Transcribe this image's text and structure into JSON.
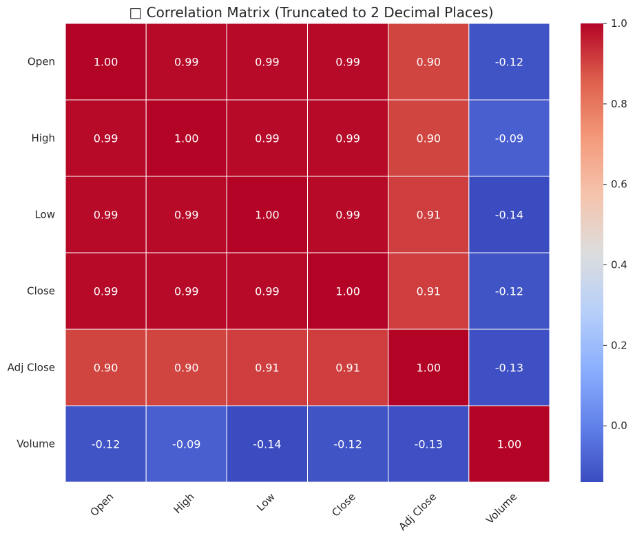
{
  "chart_data": {
    "type": "heatmap",
    "title": "□ Correlation Matrix (Truncated to 2 Decimal Places)",
    "rows": [
      "Open",
      "High",
      "Low",
      "Close",
      "Adj Close",
      "Volume"
    ],
    "columns": [
      "Open",
      "High",
      "Low",
      "Close",
      "Adj Close",
      "Volume"
    ],
    "values": [
      [
        1.0,
        0.99,
        0.99,
        0.99,
        0.9,
        -0.12
      ],
      [
        0.99,
        1.0,
        0.99,
        0.99,
        0.9,
        -0.09
      ],
      [
        0.99,
        0.99,
        1.0,
        0.99,
        0.91,
        -0.14
      ],
      [
        0.99,
        0.99,
        0.99,
        1.0,
        0.91,
        -0.12
      ],
      [
        0.9,
        0.9,
        0.91,
        0.91,
        1.0,
        -0.13
      ],
      [
        -0.12,
        -0.09,
        -0.14,
        -0.12,
        -0.13,
        1.0
      ]
    ],
    "cell_labels": [
      [
        "1.00",
        "0.99",
        "0.99",
        "0.99",
        "0.90",
        "-0.12"
      ],
      [
        "0.99",
        "1.00",
        "0.99",
        "0.99",
        "0.90",
        "-0.09"
      ],
      [
        "0.99",
        "0.99",
        "1.00",
        "0.99",
        "0.91",
        "-0.14"
      ],
      [
        "0.99",
        "0.99",
        "0.99",
        "1.00",
        "0.91",
        "-0.12"
      ],
      [
        "0.90",
        "0.90",
        "0.91",
        "0.91",
        "1.00",
        "-0.13"
      ],
      [
        "-0.12",
        "-0.09",
        "-0.14",
        "-0.12",
        "-0.13",
        "1.00"
      ]
    ],
    "colormap": "coolwarm",
    "colorbar": {
      "range": [
        -0.14,
        1.0
      ],
      "ticks": [
        0.0,
        0.2,
        0.4,
        0.6,
        0.8,
        1.0
      ],
      "tick_labels": [
        "0.0",
        "0.2",
        "0.4",
        "0.6",
        "0.8",
        "1.0"
      ]
    },
    "colors": {
      "low": "#3b4cc0",
      "mid": "#dddddd",
      "high": "#b40426",
      "grid": "#ffffff",
      "text": "#262626"
    }
  }
}
